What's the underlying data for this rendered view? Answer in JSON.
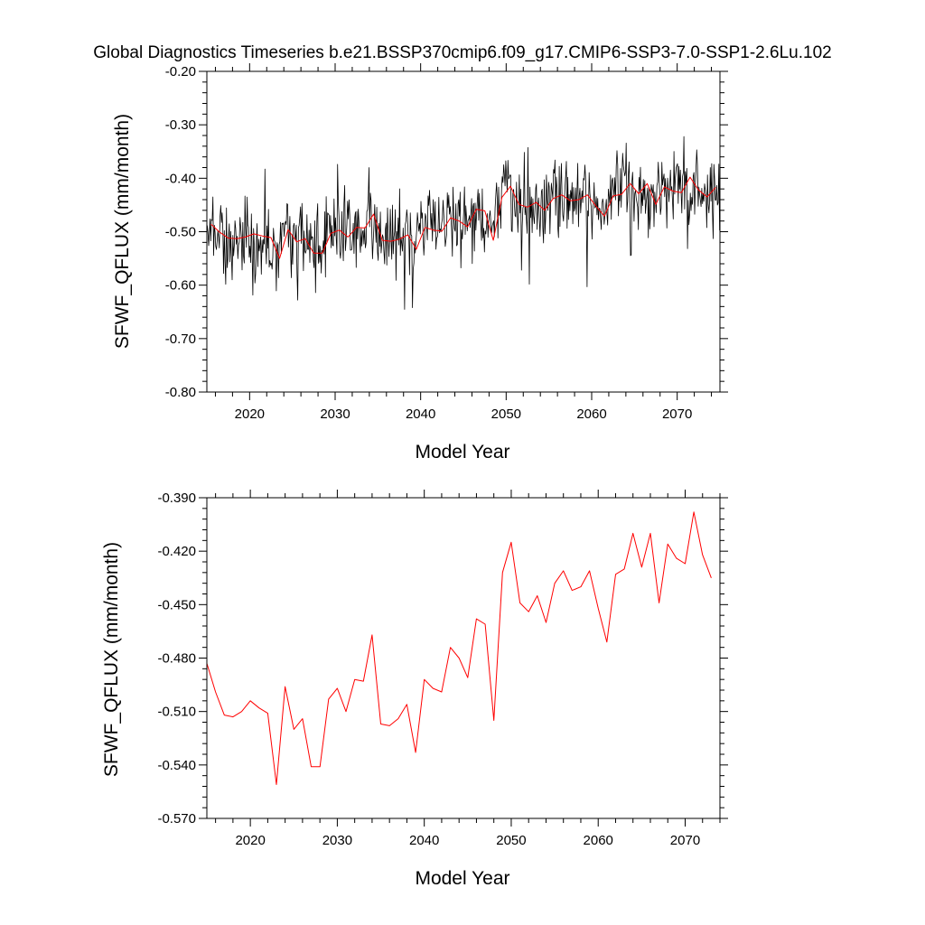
{
  "title": "Global Diagnostics Timeseries b.e21.BSSP370cmip6.f09_g17.CMIP6-SSP3-7.0-SSP1-2.6Lu.102",
  "colors": {
    "monthly": "#000000",
    "annual": "#ff0000",
    "axes": "#000000",
    "background": "#ffffff"
  },
  "chart_data": [
    {
      "type": "line",
      "xlabel": "Model Year",
      "ylabel": "SFWF_QFLUX (mm/month)",
      "xlim": [
        2015,
        2075
      ],
      "ylim": [
        -0.8,
        -0.2
      ],
      "y_decimals": 2,
      "x_ticks": [
        2020,
        2030,
        2040,
        2050,
        2060,
        2070
      ],
      "y_ticks": [
        -0.8,
        -0.7,
        -0.6,
        -0.5,
        -0.4,
        -0.3,
        -0.2
      ],
      "x_minor_step": 2,
      "y_minor_step": 0.02,
      "grid": false,
      "series": [
        {
          "style": "monthly",
          "x_start": 2015.04,
          "x_step": 0.0833333,
          "noise_seed": 102,
          "noise_amplitude": 0.065,
          "noise_min": -0.775,
          "noise_max": -0.265,
          "derived_from": "annual-means"
        },
        {
          "style": "annual",
          "x_start": 2015.5,
          "x_step": 1.0,
          "values": [
            -0.486,
            -0.501,
            -0.512,
            -0.513,
            -0.51,
            -0.504,
            -0.508,
            -0.511,
            -0.55,
            -0.496,
            -0.519,
            -0.513,
            -0.54,
            -0.54,
            -0.503,
            -0.497,
            -0.51,
            -0.492,
            -0.493,
            -0.467,
            -0.516,
            -0.518,
            -0.514,
            -0.506,
            -0.533,
            -0.492,
            -0.497,
            -0.499,
            -0.474,
            -0.48,
            -0.491,
            -0.458,
            -0.461,
            -0.516,
            -0.436,
            -0.415,
            -0.449,
            -0.454,
            -0.445,
            -0.46,
            -0.438,
            -0.431,
            -0.442,
            -0.44,
            -0.431,
            -0.452,
            -0.471,
            -0.433,
            -0.43,
            -0.41,
            -0.429,
            -0.41,
            -0.449,
            -0.416,
            -0.424,
            -0.427,
            -0.398,
            -0.422,
            -0.435,
            -0.417
          ]
        }
      ]
    },
    {
      "type": "line",
      "xlabel": "Model Year",
      "ylabel": "SFWF_QFLUX (mm/month)",
      "xlim": [
        2015,
        2074
      ],
      "ylim": [
        -0.57,
        -0.39
      ],
      "y_decimals": 3,
      "x_ticks": [
        2020,
        2030,
        2040,
        2050,
        2060,
        2070
      ],
      "y_ticks": [
        -0.57,
        -0.54,
        -0.51,
        -0.48,
        -0.45,
        -0.42,
        -0.39
      ],
      "x_minor_step": 2,
      "y_minor_step": 0.006,
      "grid": false,
      "series": [
        {
          "style": "annual",
          "x_start": 2015.0,
          "x_step": 1.0,
          "values": [
            -0.483,
            -0.499,
            -0.512,
            -0.513,
            -0.51,
            -0.504,
            -0.508,
            -0.511,
            -0.551,
            -0.496,
            -0.52,
            -0.514,
            -0.541,
            -0.541,
            -0.503,
            -0.497,
            -0.51,
            -0.492,
            -0.493,
            -0.467,
            -0.517,
            -0.518,
            -0.514,
            -0.506,
            -0.533,
            -0.492,
            -0.497,
            -0.499,
            -0.474,
            -0.48,
            -0.491,
            -0.458,
            -0.461,
            -0.515,
            -0.432,
            -0.415,
            -0.449,
            -0.454,
            -0.445,
            -0.46,
            -0.438,
            -0.431,
            -0.442,
            -0.44,
            -0.431,
            -0.452,
            -0.471,
            -0.433,
            -0.43,
            -0.41,
            -0.429,
            -0.41,
            -0.449,
            -0.416,
            -0.424,
            -0.427,
            -0.398,
            -0.422,
            -0.435
          ]
        }
      ]
    }
  ]
}
